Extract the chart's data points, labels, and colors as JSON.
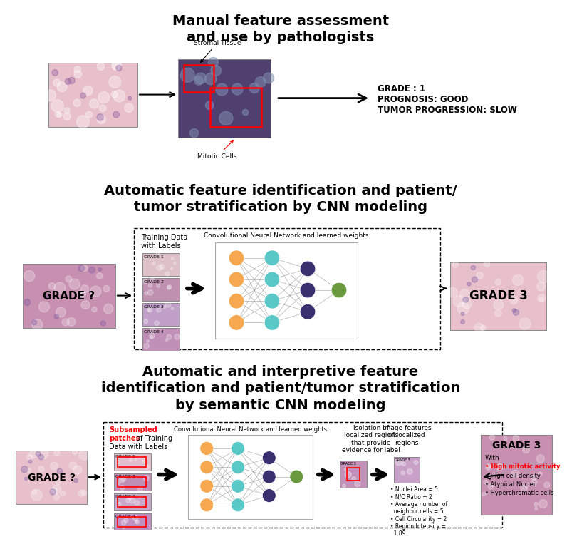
{
  "title1": "Manual feature assessment\nand use by pathologists",
  "title2": "Automatic feature identification and patient/\ntumor stratification by CNN modeling",
  "title3": "Automatic and interpretive feature\nidentification and patient/tumor stratification\nby semantic CNN modeling",
  "grade_result1": "GRADE : 1\nPROGNOSIS: GOOD\nTUMOR PROGRESSION: SLOW",
  "grade_result2": "GRADE 3",
  "grade_result3_title": "GRADE 3",
  "grade_result3_with": "With",
  "grade_result3_red": "High mitotic activity",
  "grade_result3_rest": "High cell density\nAtypical Nuclei\nHyperchromatic cells",
  "stromal_label": "Stromal Tissue",
  "mitotic_label": "Mitotic Cells",
  "training_label": "Training Data\nwith Labels",
  "cnn_label": "Convolutional Neural Network and learned weights",
  "grade_q": "GRADE ?",
  "grade1_label": "GRADE 1",
  "grade2_label": "GRADE 2",
  "grade3_label": "GRADE 3",
  "grade4_label": "GRADE 4",
  "subsampled_red": "Subsampled\npatches",
  "subsampled_black": " of Training\nData with Labels",
  "cnn_label2": "Convolutional Neural Network and learned weights",
  "isolation_label": "Isolation of\nlocalized regions\nthat provide\nevidence for label",
  "image_features_label": "Image features\nof localized\nregions",
  "features_text": "• Nuclei Area = 5\n• N/C Ratio = 2\n• Average number of\n  neighbor cells = 5\n• Cell Circularity = 2\n• Region Intensity =\n  1.89",
  "orange_color": "#f5a850",
  "cyan_color": "#5bc8c8",
  "purple_color": "#3a3070",
  "green_color": "#6a9a40",
  "bg_color": "#ffffff",
  "pink1": "#e8c0cc",
  "pink2": "#c890b0",
  "pink3": "#d8b0c8",
  "dark_hist": "#504070"
}
